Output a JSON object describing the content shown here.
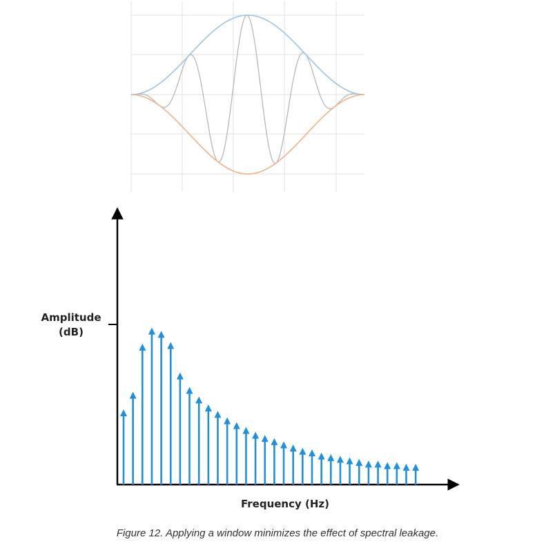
{
  "window_plot": {
    "envelope_upper_color": "#9dc3e6",
    "envelope_lower_color": "#f4b183",
    "signal_color": "#b7b7b7",
    "grid_color": "#e2e2e2"
  },
  "chart_data": {
    "type": "bar",
    "title": "",
    "xlabel": "Frequency (Hz)",
    "ylabel_line1": "Amplitude",
    "ylabel_line2": "(dB)",
    "ylim": [
      0,
      100
    ],
    "values": [
      47,
      58,
      88,
      98,
      96,
      89,
      70,
      61,
      55,
      50,
      46,
      42,
      39,
      36,
      33,
      31,
      29,
      27,
      25,
      23,
      22,
      20,
      19,
      18,
      17,
      16,
      15,
      15,
      14,
      14,
      13,
      13
    ],
    "color": "#1f8fdf"
  },
  "caption": "Figure 12. Applying a window minimizes the effect of spectral leakage."
}
